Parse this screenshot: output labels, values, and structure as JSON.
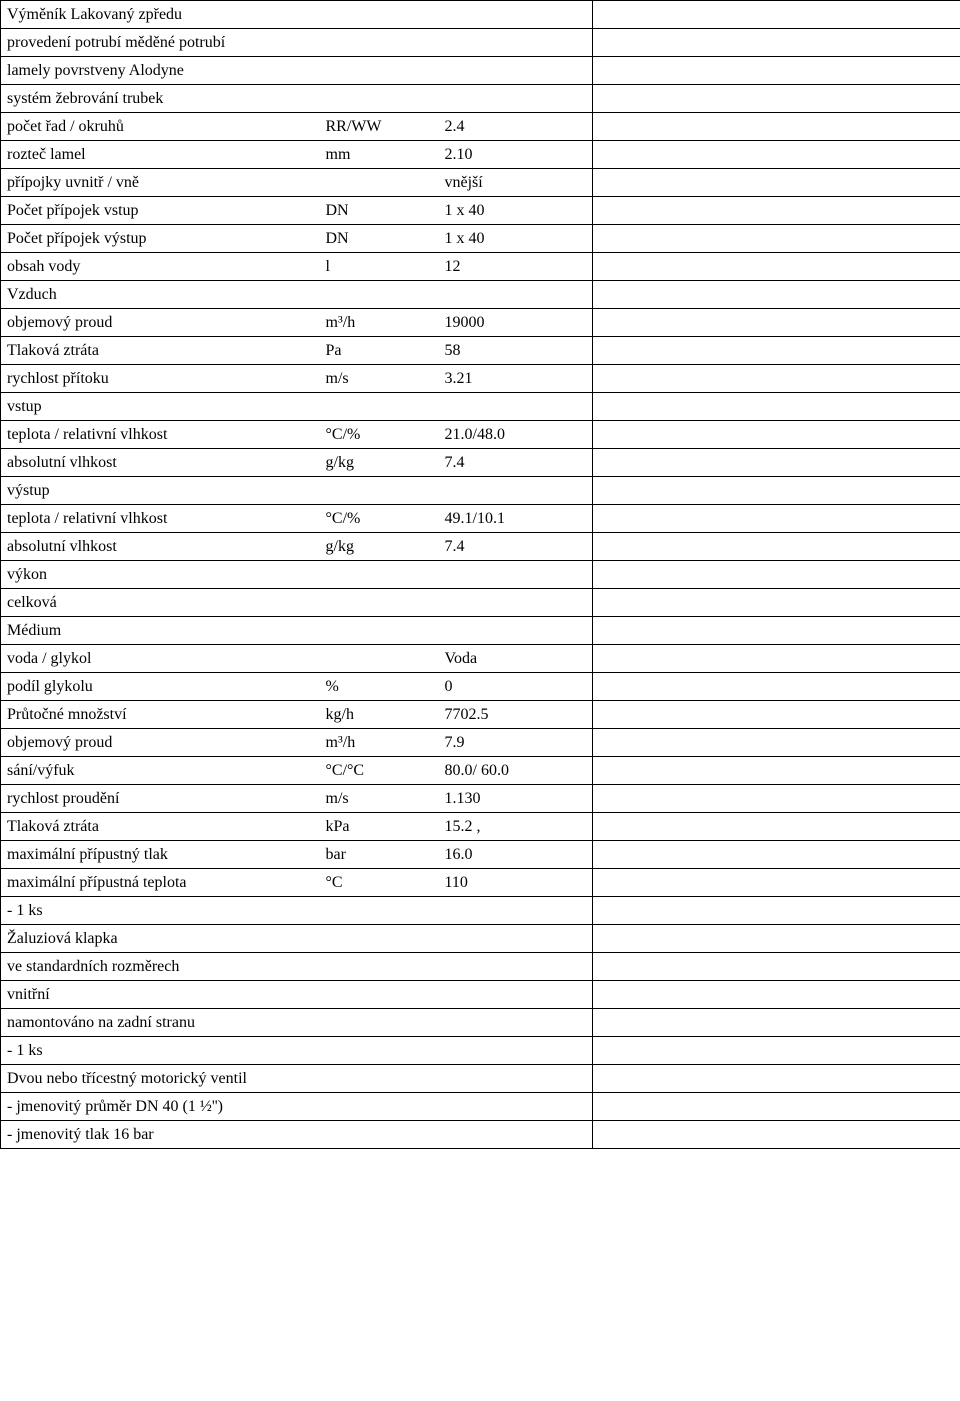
{
  "rows": [
    {
      "type": "full",
      "label": "Výměník Lakovaný zpředu"
    },
    {
      "type": "full",
      "label": "provedení potrubí měděné potrubí"
    },
    {
      "type": "full",
      "label": "lamely povrstveny Alodyne"
    },
    {
      "type": "full",
      "label": "systém žebrování trubek"
    },
    {
      "type": "data",
      "label": "počet řad / okruhů",
      "unit": "RR/WW",
      "value": "2.4"
    },
    {
      "type": "data",
      "label": "rozteč lamel",
      "unit": "mm",
      "value": "2.10"
    },
    {
      "type": "data",
      "label": "přípojky uvnitř / vně",
      "unit": "",
      "value": "vnější"
    },
    {
      "type": "data",
      "label": "Počet přípojek vstup",
      "unit": "DN",
      "value": "1 x 40"
    },
    {
      "type": "data",
      "label": "Počet přípojek výstup",
      "unit": "DN",
      "value": "1 x 40"
    },
    {
      "type": "data",
      "label": "obsah vody",
      "unit": "l",
      "value": "12"
    },
    {
      "type": "full",
      "label": "Vzduch"
    },
    {
      "type": "data",
      "label": "objemový proud",
      "unit": "m³/h",
      "value": "19000"
    },
    {
      "type": "data",
      "label": "Tlaková ztráta",
      "unit": "Pa",
      "value": "58"
    },
    {
      "type": "data",
      "label": "rychlost přítoku",
      "unit": "m/s",
      "value": "3.21"
    },
    {
      "type": "full",
      "label": "vstup"
    },
    {
      "type": "data",
      "label": "teplota / relativní vlhkost",
      "unit": "°C/%",
      "value": "21.0/48.0"
    },
    {
      "type": "data",
      "label": "absolutní vlhkost",
      "unit": "g/kg",
      "value": "7.4"
    },
    {
      "type": "full",
      "label": "výstup"
    },
    {
      "type": "data",
      "label": "teplota / relativní vlhkost",
      "unit": "°C/%",
      "value": "49.1/10.1"
    },
    {
      "type": "data",
      "label": "absolutní vlhkost",
      "unit": "g/kg",
      "value": "7.4"
    },
    {
      "type": "full",
      "label": "výkon"
    },
    {
      "type": "full",
      "label": "celková"
    },
    {
      "type": "full",
      "label": "Médium"
    },
    {
      "type": "data",
      "label": "voda / glykol",
      "unit": "",
      "value": "Voda"
    },
    {
      "type": "data",
      "label": "podíl glykolu",
      "unit": "%",
      "value": "0"
    },
    {
      "type": "data",
      "label": "Průtočné množství",
      "unit": "kg/h",
      "value": "7702.5"
    },
    {
      "type": "data",
      "label": "objemový proud",
      "unit": "m³/h",
      "value": "7.9"
    },
    {
      "type": "data",
      "label": "sání/výfuk",
      "unit": "°C/°C",
      "value": "80.0/ 60.0"
    },
    {
      "type": "data",
      "label": "rychlost proudění",
      "unit": "m/s",
      "value": "1.130"
    },
    {
      "type": "data",
      "label": "Tlaková ztráta",
      "unit": "kPa",
      "value": "15.2        ,"
    },
    {
      "type": "data",
      "label": "maximální přípustný tlak",
      "unit": "bar",
      "value": "16.0"
    },
    {
      "type": "data",
      "label": "maximální přípustná teplota",
      "unit": "°C",
      "value": "110"
    },
    {
      "type": "full",
      "label": " - 1 ks"
    },
    {
      "type": "full",
      "label": "Žaluziová klapka"
    },
    {
      "type": "full",
      "label": "ve standardních rozměrech"
    },
    {
      "type": "full",
      "label": "vnitřní"
    },
    {
      "type": "full",
      "label": "namontováno na zadní stranu"
    },
    {
      "type": "full",
      "label": " - 1 ks"
    },
    {
      "type": "full",
      "label": "Dvou nebo třícestný motorický ventil"
    },
    {
      "type": "full",
      "label": "- jmenovitý průměr DN 40 (1 ½'')"
    },
    {
      "type": "full",
      "label": "- jmenovitý tlak 16 bar"
    }
  ]
}
